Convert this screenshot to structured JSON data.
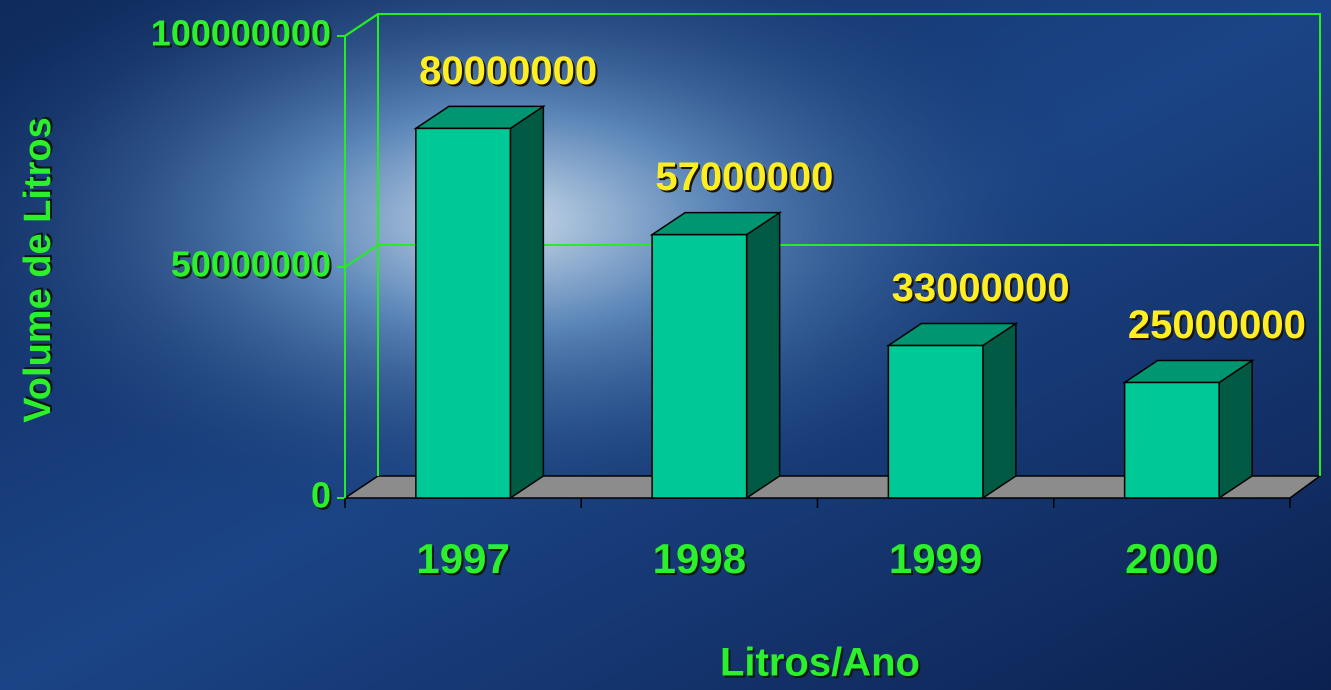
{
  "chart_data": {
    "type": "bar3d",
    "y_label": "Volume de Litros",
    "x_label": "Litros/Ano",
    "categories": [
      "1997",
      "1998",
      "1999",
      "2000"
    ],
    "values": [
      80000000,
      57000000,
      33000000,
      25000000
    ],
    "color": "#00c896",
    "ylim": [
      0,
      100000000
    ],
    "yticks": [
      0,
      50000000,
      100000000
    ],
    "grid": true
  }
}
